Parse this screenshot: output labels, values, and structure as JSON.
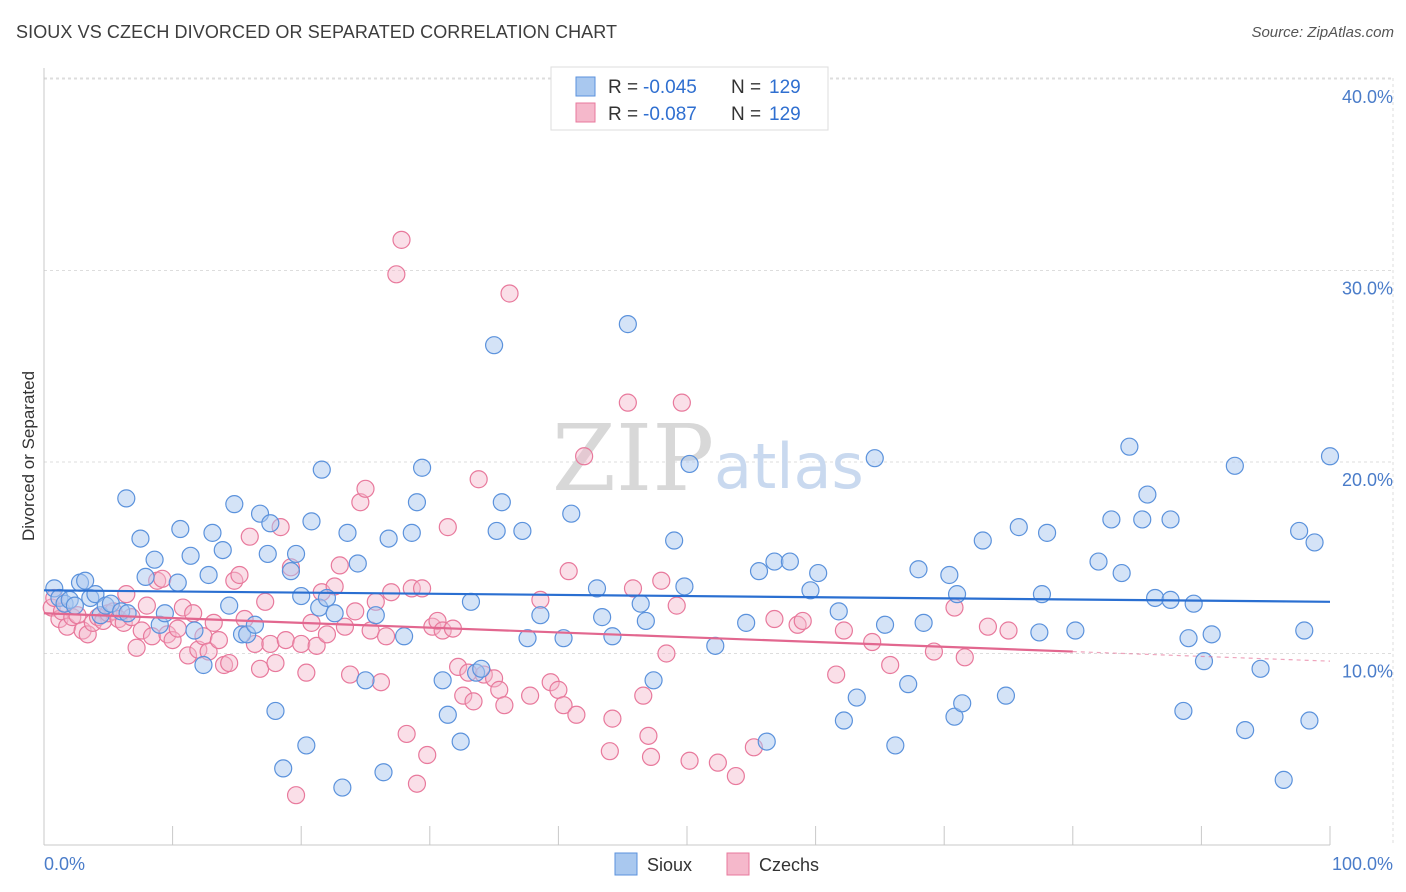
{
  "header": {
    "title": "SIOUX VS CZECH DIVORCED OR SEPARATED CORRELATION CHART",
    "source": "Source: ZipAtlas.com"
  },
  "watermark": {
    "zip": "ZIP",
    "atlas": "atlas"
  },
  "colors": {
    "sioux_fill": "#a9c8ef",
    "sioux_stroke": "#5b92dc",
    "sioux_line": "#2a6fd1",
    "czech_fill": "#f5b8cb",
    "czech_stroke": "#e8799c",
    "czech_line": "#e2678f",
    "grid": "#dddddd",
    "tick_text": "#4a7cc9"
  },
  "legend_top": [
    {
      "r_label": "R =",
      "r_value": "-0.045",
      "n_label": "N =",
      "n_value": "129"
    },
    {
      "r_label": "R =",
      "r_value": "-0.087",
      "n_label": "N =",
      "n_value": "129"
    }
  ],
  "chart_data": {
    "type": "scatter",
    "title": "SIOUX VS CZECH DIVORCED OR SEPARATED CORRELATION CHART",
    "xlabel": "",
    "ylabel": "Divorced or Separated",
    "xlim": [
      0,
      100
    ],
    "ylim": [
      0,
      40
    ],
    "x_tick_labels": [
      "0.0%",
      "100.0%"
    ],
    "y_ticks": [
      10,
      20,
      30,
      40
    ],
    "y_tick_labels": [
      "10.0%",
      "20.0%",
      "30.0%",
      "40.0%"
    ],
    "legend": [
      "Sioux",
      "Czechs"
    ],
    "legend_position": "bottom-center",
    "grid": true,
    "series": [
      {
        "name": "Sioux",
        "trend": {
          "x": [
            0,
            100
          ],
          "y": [
            13.3,
            12.7
          ]
        },
        "points": [
          [
            0.8,
            13.4
          ],
          [
            1.2,
            12.9
          ],
          [
            1.6,
            12.6
          ],
          [
            2.0,
            12.8
          ],
          [
            2.4,
            12.5
          ],
          [
            2.8,
            13.7
          ],
          [
            3.2,
            13.8
          ],
          [
            3.6,
            12.9
          ],
          [
            4.0,
            13.1
          ],
          [
            4.4,
            12.0
          ],
          [
            4.8,
            12.5
          ],
          [
            5.2,
            12.6
          ],
          [
            6.0,
            12.2
          ],
          [
            6.5,
            12.1
          ],
          [
            6.4,
            18.1
          ],
          [
            7.5,
            16.0
          ],
          [
            7.9,
            14.0
          ],
          [
            8.6,
            14.9
          ],
          [
            9.0,
            11.5
          ],
          [
            9.4,
            12.1
          ],
          [
            10.4,
            13.7
          ],
          [
            10.6,
            16.5
          ],
          [
            11.4,
            15.1
          ],
          [
            11.7,
            11.2
          ],
          [
            12.4,
            9.4
          ],
          [
            12.8,
            14.1
          ],
          [
            13.1,
            16.3
          ],
          [
            13.9,
            15.4
          ],
          [
            14.4,
            12.5
          ],
          [
            14.8,
            17.8
          ],
          [
            15.4,
            11.0
          ],
          [
            15.8,
            11.0
          ],
          [
            16.4,
            11.5
          ],
          [
            16.8,
            17.3
          ],
          [
            17.4,
            15.2
          ],
          [
            17.6,
            16.8
          ],
          [
            18.0,
            7.0
          ],
          [
            18.6,
            4.0
          ],
          [
            19.2,
            14.3
          ],
          [
            19.6,
            15.2
          ],
          [
            20.0,
            13.0
          ],
          [
            20.4,
            5.2
          ],
          [
            20.8,
            16.9
          ],
          [
            21.4,
            12.4
          ],
          [
            21.6,
            19.6
          ],
          [
            22.0,
            12.9
          ],
          [
            22.6,
            12.1
          ],
          [
            23.2,
            3.0
          ],
          [
            23.6,
            16.3
          ],
          [
            24.4,
            14.7
          ],
          [
            25.0,
            8.6
          ],
          [
            25.8,
            12.0
          ],
          [
            26.4,
            3.8
          ],
          [
            26.8,
            16.0
          ],
          [
            28.0,
            10.9
          ],
          [
            28.6,
            16.3
          ],
          [
            29.0,
            17.9
          ],
          [
            29.4,
            19.7
          ],
          [
            31.0,
            8.6
          ],
          [
            31.4,
            6.8
          ],
          [
            32.4,
            5.4
          ],
          [
            33.2,
            12.7
          ],
          [
            33.6,
            9.0
          ],
          [
            34.0,
            9.2
          ],
          [
            35.0,
            26.1
          ],
          [
            35.2,
            16.4
          ],
          [
            35.6,
            17.9
          ],
          [
            37.2,
            16.4
          ],
          [
            37.6,
            10.8
          ],
          [
            38.6,
            12.0
          ],
          [
            40.4,
            10.8
          ],
          [
            41.0,
            17.3
          ],
          [
            43.0,
            13.4
          ],
          [
            43.4,
            11.9
          ],
          [
            44.2,
            10.9
          ],
          [
            45.4,
            27.2
          ],
          [
            46.4,
            12.6
          ],
          [
            46.8,
            11.7
          ],
          [
            47.4,
            8.6
          ],
          [
            49.0,
            15.9
          ],
          [
            49.8,
            13.5
          ],
          [
            50.2,
            19.9
          ],
          [
            52.2,
            10.4
          ],
          [
            54.6,
            11.6
          ],
          [
            55.6,
            14.3
          ],
          [
            56.2,
            5.4
          ],
          [
            56.8,
            14.8
          ],
          [
            58.0,
            14.8
          ],
          [
            59.6,
            13.3
          ],
          [
            60.2,
            14.2
          ],
          [
            61.8,
            12.2
          ],
          [
            62.2,
            6.5
          ],
          [
            63.2,
            7.7
          ],
          [
            64.6,
            20.2
          ],
          [
            65.4,
            11.5
          ],
          [
            66.2,
            5.2
          ],
          [
            67.2,
            8.4
          ],
          [
            68.0,
            14.4
          ],
          [
            68.4,
            11.6
          ],
          [
            70.4,
            14.1
          ],
          [
            70.8,
            6.7
          ],
          [
            71.4,
            7.4
          ],
          [
            71.0,
            13.1
          ],
          [
            73.0,
            15.9
          ],
          [
            74.8,
            7.8
          ],
          [
            75.8,
            16.6
          ],
          [
            77.4,
            11.1
          ],
          [
            77.6,
            13.1
          ],
          [
            78.0,
            16.3
          ],
          [
            80.2,
            11.2
          ],
          [
            82.0,
            14.8
          ],
          [
            83.0,
            17.0
          ],
          [
            83.8,
            14.2
          ],
          [
            84.4,
            20.8
          ],
          [
            85.4,
            17.0
          ],
          [
            85.8,
            18.3
          ],
          [
            86.4,
            12.9
          ],
          [
            87.6,
            12.8
          ],
          [
            87.6,
            17.0
          ],
          [
            88.6,
            7.0
          ],
          [
            89.0,
            10.8
          ],
          [
            89.4,
            12.6
          ],
          [
            90.2,
            9.6
          ],
          [
            90.8,
            11.0
          ],
          [
            92.6,
            19.8
          ],
          [
            93.4,
            6.0
          ],
          [
            94.6,
            9.2
          ],
          [
            96.4,
            3.4
          ],
          [
            97.6,
            16.4
          ],
          [
            98.0,
            11.2
          ],
          [
            98.4,
            6.5
          ],
          [
            98.8,
            15.8
          ],
          [
            100.0,
            20.3
          ]
        ]
      },
      {
        "name": "Czechs",
        "trend": {
          "x": [
            0,
            80
          ],
          "y": [
            12.1,
            10.1
          ]
        },
        "trend_dashed": {
          "x": [
            80,
            100
          ],
          "y": [
            10.1,
            9.6
          ]
        },
        "points": [
          [
            0.6,
            12.4
          ],
          [
            0.8,
            12.9
          ],
          [
            1.2,
            11.8
          ],
          [
            1.4,
            12.2
          ],
          [
            1.8,
            11.4
          ],
          [
            2.2,
            11.9
          ],
          [
            2.6,
            12.0
          ],
          [
            3.0,
            11.2
          ],
          [
            3.4,
            11.0
          ],
          [
            3.8,
            11.6
          ],
          [
            4.2,
            11.9
          ],
          [
            4.6,
            11.7
          ],
          [
            5.0,
            12.1
          ],
          [
            5.4,
            12.2
          ],
          [
            5.8,
            11.8
          ],
          [
            6.2,
            11.6
          ],
          [
            6.4,
            13.1
          ],
          [
            6.8,
            11.9
          ],
          [
            7.2,
            10.3
          ],
          [
            7.6,
            11.2
          ],
          [
            8.0,
            12.5
          ],
          [
            8.4,
            10.9
          ],
          [
            8.8,
            13.8
          ],
          [
            9.2,
            13.9
          ],
          [
            9.6,
            11.0
          ],
          [
            10.0,
            10.7
          ],
          [
            10.4,
            11.3
          ],
          [
            10.8,
            12.4
          ],
          [
            11.2,
            9.9
          ],
          [
            11.6,
            12.1
          ],
          [
            12.0,
            10.2
          ],
          [
            12.4,
            10.9
          ],
          [
            12.8,
            10.1
          ],
          [
            13.2,
            11.6
          ],
          [
            13.6,
            10.7
          ],
          [
            14.0,
            9.4
          ],
          [
            14.4,
            9.5
          ],
          [
            14.8,
            13.8
          ],
          [
            15.2,
            14.1
          ],
          [
            15.6,
            11.8
          ],
          [
            16.0,
            16.1
          ],
          [
            16.4,
            10.5
          ],
          [
            16.8,
            9.2
          ],
          [
            17.2,
            12.7
          ],
          [
            17.6,
            10.5
          ],
          [
            18.0,
            9.5
          ],
          [
            18.4,
            16.6
          ],
          [
            18.8,
            10.7
          ],
          [
            19.2,
            14.5
          ],
          [
            19.6,
            2.6
          ],
          [
            20.0,
            10.5
          ],
          [
            20.4,
            9.0
          ],
          [
            20.8,
            11.6
          ],
          [
            21.2,
            10.4
          ],
          [
            21.6,
            13.2
          ],
          [
            22.0,
            11.0
          ],
          [
            22.6,
            13.5
          ],
          [
            23.0,
            14.6
          ],
          [
            23.4,
            11.4
          ],
          [
            23.8,
            8.9
          ],
          [
            24.2,
            12.2
          ],
          [
            24.6,
            17.9
          ],
          [
            25.0,
            18.6
          ],
          [
            25.4,
            11.2
          ],
          [
            25.8,
            12.7
          ],
          [
            26.2,
            8.5
          ],
          [
            26.6,
            10.9
          ],
          [
            27.0,
            13.2
          ],
          [
            27.4,
            29.8
          ],
          [
            27.8,
            31.6
          ],
          [
            28.2,
            5.8
          ],
          [
            28.6,
            13.4
          ],
          [
            29.0,
            3.2
          ],
          [
            29.4,
            13.4
          ],
          [
            29.8,
            4.7
          ],
          [
            30.2,
            11.4
          ],
          [
            30.6,
            11.7
          ],
          [
            31.0,
            11.2
          ],
          [
            31.4,
            16.6
          ],
          [
            31.8,
            11.3
          ],
          [
            32.2,
            9.3
          ],
          [
            32.6,
            7.8
          ],
          [
            33.0,
            9.0
          ],
          [
            33.4,
            7.5
          ],
          [
            33.8,
            19.1
          ],
          [
            34.2,
            8.9
          ],
          [
            35.0,
            8.7
          ],
          [
            35.4,
            8.1
          ],
          [
            35.8,
            7.3
          ],
          [
            36.2,
            28.8
          ],
          [
            37.8,
            7.8
          ],
          [
            38.6,
            12.8
          ],
          [
            39.4,
            8.5
          ],
          [
            40.0,
            8.1
          ],
          [
            40.4,
            7.3
          ],
          [
            40.8,
            14.3
          ],
          [
            41.4,
            6.8
          ],
          [
            42.0,
            20.3
          ],
          [
            44.0,
            4.9
          ],
          [
            44.2,
            6.6
          ],
          [
            45.4,
            23.1
          ],
          [
            45.8,
            13.4
          ],
          [
            46.6,
            7.8
          ],
          [
            47.0,
            5.7
          ],
          [
            47.2,
            4.6
          ],
          [
            48.0,
            13.8
          ],
          [
            48.4,
            10.0
          ],
          [
            49.2,
            12.5
          ],
          [
            49.6,
            23.1
          ],
          [
            50.2,
            4.4
          ],
          [
            52.4,
            4.3
          ],
          [
            53.8,
            3.6
          ],
          [
            55.2,
            5.1
          ],
          [
            56.8,
            11.8
          ],
          [
            58.6,
            11.5
          ],
          [
            59.0,
            11.7
          ],
          [
            61.6,
            8.9
          ],
          [
            62.2,
            11.2
          ],
          [
            64.4,
            10.6
          ],
          [
            65.8,
            9.4
          ],
          [
            69.2,
            10.1
          ],
          [
            70.8,
            12.4
          ],
          [
            71.6,
            9.8
          ],
          [
            73.4,
            11.4
          ],
          [
            75.0,
            11.2
          ]
        ]
      }
    ]
  }
}
